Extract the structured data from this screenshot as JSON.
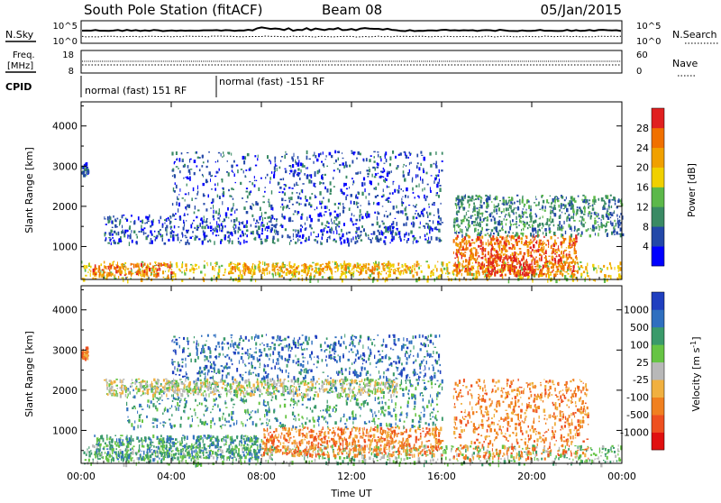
{
  "header": {
    "title": "South Pole Station (fitACF)",
    "beam": "Beam 08",
    "date": "05/Jan/2015"
  },
  "noise_panel": {
    "left_label": "N.Sky",
    "left_ticks": [
      "10^5",
      "10^0"
    ],
    "right_label": "N.Search",
    "right_ticks": [
      "10^5",
      "10^0"
    ]
  },
  "freq_panel": {
    "left_label_1": "Freq.",
    "left_label_2": "[MHz]",
    "left_ticks": [
      "18",
      "8"
    ],
    "right_label": "Nave",
    "right_ticks": [
      "60",
      "0"
    ]
  },
  "cpid": {
    "label": "CPID",
    "segments": [
      "normal (fast) 151 RF",
      "normal (fast) -151 RF"
    ]
  },
  "chart_data": [
    {
      "type": "heatmap",
      "title": "",
      "xlabel": "",
      "ylabel": "Slant Range [km]",
      "x_ticks": [
        "00:00",
        "04:00",
        "08:00",
        "12:00",
        "16:00",
        "20:00",
        "00:00"
      ],
      "xlim_hours": [
        0,
        24
      ],
      "y_ticks": [
        1000,
        2000,
        3000,
        4000
      ],
      "ylim": [
        180,
        4600
      ],
      "colorbar": {
        "label": "Power [dB]",
        "tick_labels": [
          "4",
          "8",
          "12",
          "16",
          "20",
          "24",
          "28"
        ],
        "colors": [
          "#0000ff",
          "#2348a8",
          "#3a8a64",
          "#5cb84a",
          "#f0d000",
          "#f0a000",
          "#f07000",
          "#e02020"
        ]
      },
      "echo_regions": [
        {
          "t_start": 0.0,
          "t_end": 24.0,
          "r_min": 180,
          "r_max": 650,
          "level": 4
        },
        {
          "t_start": 0.5,
          "t_end": 4.0,
          "r_min": 300,
          "r_max": 600,
          "level": 6
        },
        {
          "t_start": 6.5,
          "t_end": 15.0,
          "r_min": 350,
          "r_max": 600,
          "level": 5
        },
        {
          "t_start": 16.5,
          "t_end": 22.0,
          "r_min": 300,
          "r_max": 1300,
          "level": 6
        },
        {
          "t_start": 18.0,
          "t_end": 20.0,
          "r_min": 300,
          "r_max": 800,
          "level": 7
        },
        {
          "t_start": 1.0,
          "t_end": 16.0,
          "r_min": 1100,
          "r_max": 1800,
          "level": 1
        },
        {
          "t_start": 16.5,
          "t_end": 24.0,
          "r_min": 1300,
          "r_max": 2300,
          "level": 2
        },
        {
          "t_start": 4.0,
          "t_end": 16.0,
          "r_min": 1800,
          "r_max": 3400,
          "level": 1
        },
        {
          "t_start": 0.0,
          "t_end": 0.3,
          "r_min": 2800,
          "r_max": 3100,
          "level": 1
        }
      ]
    },
    {
      "type": "heatmap",
      "title": "",
      "xlabel": "Time UT",
      "ylabel": "Slant Range [km]",
      "x_ticks": [
        "00:00",
        "04:00",
        "08:00",
        "12:00",
        "16:00",
        "20:00",
        "00:00"
      ],
      "xlim_hours": [
        0,
        24
      ],
      "y_ticks": [
        1000,
        2000,
        3000,
        4000
      ],
      "ylim": [
        180,
        4600
      ],
      "colorbar": {
        "label": "Velocity [m s^-1]",
        "tick_labels": [
          "1000",
          "500",
          "100",
          "25",
          "-25",
          "-100",
          "-500",
          "-1000"
        ],
        "colors": [
          "#1f3fbf",
          "#2f6fbf",
          "#3a9a6a",
          "#66c444",
          "#b8b8b8",
          "#f0b040",
          "#f08020",
          "#ee5020",
          "#e01010"
        ]
      },
      "echo_regions": [
        {
          "t_start": 0.0,
          "t_end": 24.0,
          "r_min": 180,
          "r_max": 650,
          "level": 3
        },
        {
          "t_start": 0.5,
          "t_end": 8.0,
          "r_min": 300,
          "r_max": 900,
          "level": 2
        },
        {
          "t_start": 8.0,
          "t_end": 16.0,
          "r_min": 400,
          "r_max": 1100,
          "level": 6
        },
        {
          "t_start": 16.5,
          "t_end": 22.5,
          "r_min": 300,
          "r_max": 2300,
          "level": 6
        },
        {
          "t_start": 2.0,
          "t_end": 16.0,
          "r_min": 1100,
          "r_max": 2300,
          "level": 2
        },
        {
          "t_start": 1.0,
          "t_end": 14.0,
          "r_min": 1900,
          "r_max": 2300,
          "level": 4
        },
        {
          "t_start": 4.0,
          "t_end": 16.0,
          "r_min": 2300,
          "r_max": 3400,
          "level": 1
        },
        {
          "t_start": 0.0,
          "t_end": 0.3,
          "r_min": 2800,
          "r_max": 3100,
          "level": 6
        }
      ]
    }
  ]
}
